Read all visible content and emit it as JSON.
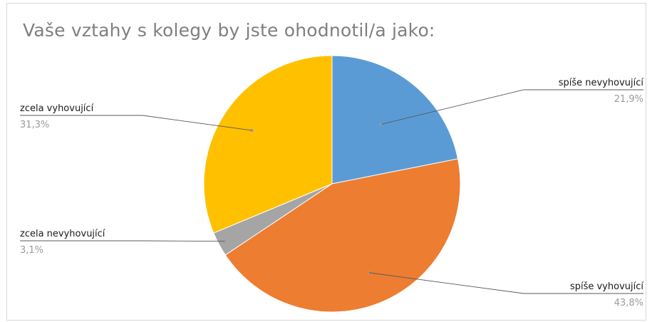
{
  "chart_data": {
    "type": "pie",
    "title": "Vaše vztahy s kolegy by jste ohodnotil/a jako:",
    "slices": [
      {
        "label": "spíše nevyhovující",
        "value": 21.9,
        "value_label": "21,9%",
        "color": "#5B9BD5"
      },
      {
        "label": "spíše vyhovující",
        "value": 43.8,
        "value_label": "43,8%",
        "color": "#ED7D31"
      },
      {
        "label": "zcela nevyhovující",
        "value": 3.1,
        "value_label": "3,1%",
        "color": "#A5A5A5"
      },
      {
        "label": "zcela vyhovující",
        "value": 31.3,
        "value_label": "31,3%",
        "color": "#FFC000"
      }
    ],
    "start_angle": "12 o'clock",
    "direction": "clockwise",
    "legend": "none (data labels with leader lines)"
  }
}
